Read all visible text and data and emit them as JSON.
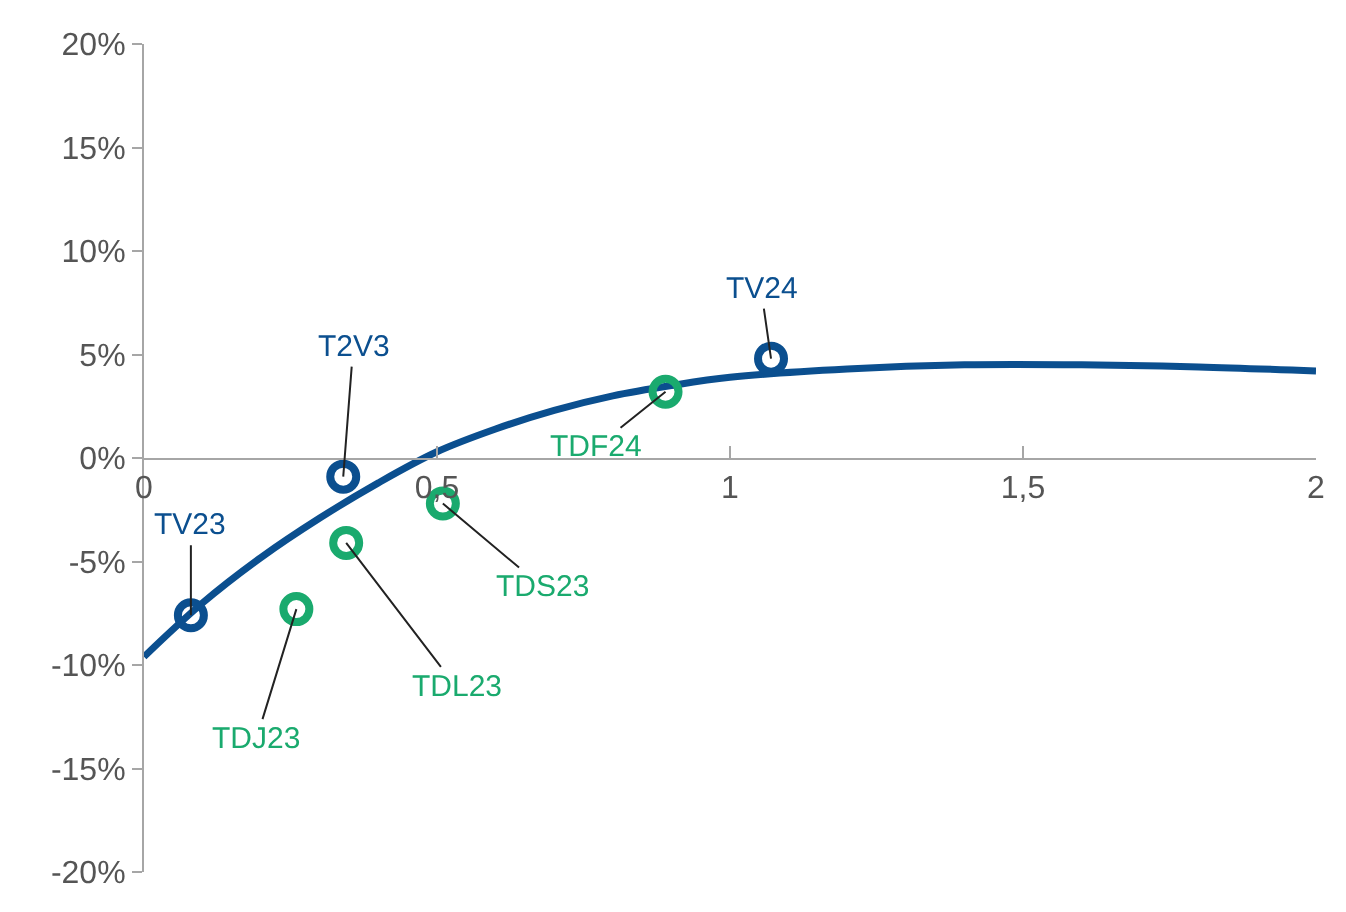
{
  "chart_data": {
    "type": "scatter",
    "xlim": [
      0,
      2
    ],
    "xticks": [
      0,
      {
        "value": 0.5,
        "label": "0,5"
      },
      1,
      {
        "value": 1.5,
        "label": "1,5"
      },
      2
    ],
    "ylim": [
      -20,
      20
    ],
    "yticks": [
      {
        "value": -20,
        "label": "-20%"
      },
      {
        "value": -15,
        "label": "-15%"
      },
      {
        "value": -10,
        "label": "-10%"
      },
      {
        "value": -5,
        "label": "-5%"
      },
      {
        "value": 0,
        "label": "0%"
      },
      {
        "value": 5,
        "label": "5%"
      },
      {
        "value": 10,
        "label": "10%"
      },
      {
        "value": 15,
        "label": "15%"
      },
      {
        "value": 20,
        "label": "20%"
      }
    ],
    "series": [
      {
        "type": "line",
        "color": "#0b4f8f",
        "marker": "none",
        "line_style": "solid",
        "x": [
          0,
          0.1,
          0.2,
          0.3,
          0.4,
          0.5,
          0.6,
          0.7,
          0.8,
          0.9,
          1.0,
          1.2,
          1.4,
          1.6,
          1.8,
          2.0
        ],
        "values": [
          -9.6,
          -7.0,
          -4.8,
          -2.9,
          -1.2,
          0.3,
          1.4,
          2.3,
          3.0,
          3.5,
          3.9,
          4.3,
          4.5,
          4.5,
          4.4,
          4.2
        ]
      },
      {
        "color": "#0b4f8f",
        "marker": "circle",
        "x": [
          0.08,
          0.34,
          1.07
        ],
        "values": [
          -7.6,
          -0.9,
          4.8
        ]
      },
      {
        "color": "#1aaa6e",
        "marker": "circle",
        "x": [
          0.26,
          0.345,
          0.51,
          0.89
        ],
        "values": [
          -7.3,
          -4.1,
          -2.2,
          3.2
        ]
      }
    ],
    "annotations": [
      {
        "text": "TV23",
        "x": 0.08,
        "y": -7.6
      },
      {
        "text": "T2V3",
        "x": 0.34,
        "y": -0.9
      },
      {
        "text": "TV24",
        "x": 1.07,
        "y": 4.8
      },
      {
        "text": "TDJ23",
        "x": 0.26,
        "y": -7.3
      },
      {
        "text": "TDL23",
        "x": 0.345,
        "y": -4.1
      },
      {
        "text": "TDS23",
        "x": 0.51,
        "y": -2.2
      },
      {
        "text": "TDF24",
        "x": 0.89,
        "y": 3.2
      }
    ]
  }
}
